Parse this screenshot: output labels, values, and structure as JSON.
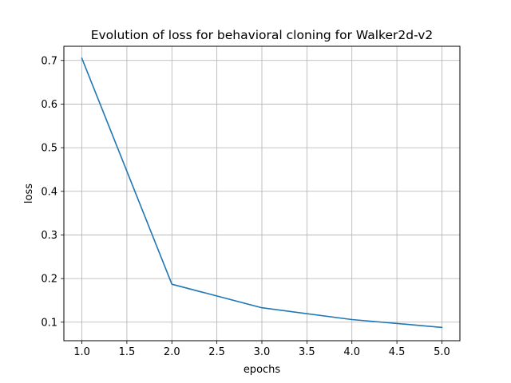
{
  "chart_data": {
    "type": "line",
    "title": "Evolution of loss for behavioral cloning for Walker2d-v2",
    "xlabel": "epochs",
    "ylabel": "loss",
    "xlim": [
      0.8,
      5.2
    ],
    "ylim": [
      0.0575,
      0.7325
    ],
    "xticks": [
      "1.0",
      "1.5",
      "2.0",
      "2.5",
      "3.0",
      "3.5",
      "4.0",
      "4.5",
      "5.0"
    ],
    "yticks": [
      "0.1",
      "0.2",
      "0.3",
      "0.4",
      "0.5",
      "0.6",
      "0.7"
    ],
    "grid": true,
    "series": [
      {
        "color": "#1f77b4",
        "x": [
          1,
          2,
          3,
          4,
          5
        ],
        "y": [
          0.705,
          0.187,
          0.133,
          0.106,
          0.088
        ]
      }
    ]
  }
}
